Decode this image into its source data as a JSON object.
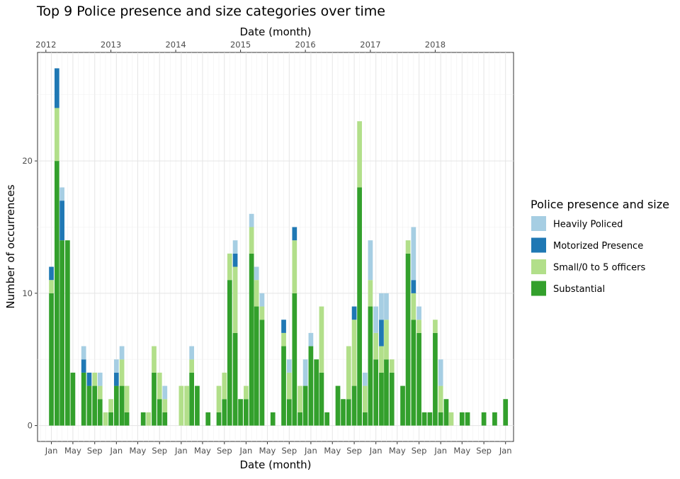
{
  "chart_data": {
    "type": "bar",
    "stacked": true,
    "title": "Top 9  Police presence and size categories over time",
    "xlabel": "Date (month)",
    "xlabel_top": "Date (month)",
    "ylabel": "Number of occurrences",
    "ylim": [
      -1.2,
      28.2
    ],
    "y_ticks": [
      0,
      10,
      20
    ],
    "x_range": [
      "2011-10-15",
      "2019-02-15"
    ],
    "bottom_ticks": [
      {
        "date": "2012-01-01",
        "label": "Jan"
      },
      {
        "date": "2012-05-01",
        "label": "May"
      },
      {
        "date": "2012-09-01",
        "label": "Sep"
      },
      {
        "date": "2013-01-01",
        "label": "Jan"
      },
      {
        "date": "2013-05-01",
        "label": "May"
      },
      {
        "date": "2013-09-01",
        "label": "Sep"
      },
      {
        "date": "2014-01-01",
        "label": "Jan"
      },
      {
        "date": "2014-05-01",
        "label": "May"
      },
      {
        "date": "2014-09-01",
        "label": "Sep"
      },
      {
        "date": "2015-01-01",
        "label": "Jan"
      },
      {
        "date": "2015-05-01",
        "label": "May"
      },
      {
        "date": "2015-09-01",
        "label": "Sep"
      },
      {
        "date": "2016-01-01",
        "label": "Jan"
      },
      {
        "date": "2016-05-01",
        "label": "May"
      },
      {
        "date": "2016-09-01",
        "label": "Sep"
      },
      {
        "date": "2017-01-01",
        "label": "Jan"
      },
      {
        "date": "2017-05-01",
        "label": "May"
      },
      {
        "date": "2017-09-01",
        "label": "Sep"
      },
      {
        "date": "2018-01-01",
        "label": "Jan"
      },
      {
        "date": "2018-05-01",
        "label": "May"
      },
      {
        "date": "2018-09-01",
        "label": "Sep"
      },
      {
        "date": "2019-01-01",
        "label": "Jan"
      }
    ],
    "top_ticks": [
      {
        "date": "2011-12-01",
        "label": "2012"
      },
      {
        "date": "2012-12-01",
        "label": "2013"
      },
      {
        "date": "2013-12-01",
        "label": "2014"
      },
      {
        "date": "2014-12-01",
        "label": "2015"
      },
      {
        "date": "2015-12-01",
        "label": "2016"
      },
      {
        "date": "2016-12-01",
        "label": "2017"
      },
      {
        "date": "2017-12-01",
        "label": "2018"
      }
    ],
    "grid": true,
    "legend": {
      "title": "Police presence and size",
      "position": "right",
      "entries": [
        {
          "name": "Heavily Policed",
          "color": "#a6cee3"
        },
        {
          "name": "Motorized Presence",
          "color": "#1f78b4"
        },
        {
          "name": "Small/0 to 5 officers",
          "color": "#b2df8a"
        },
        {
          "name": "Substantial",
          "color": "#33a02c"
        }
      ]
    },
    "stack_order": [
      "Substantial",
      "Small/0 to 5 officers",
      "Motorized Presence",
      "Heavily Policed"
    ],
    "colors": {
      "Heavily Policed": "#a6cee3",
      "Motorized Presence": "#1f78b4",
      "Small/0 to 5 officers": "#b2df8a",
      "Substantial": "#33a02c"
    },
    "bars": [
      {
        "month": "2012-01",
        "Substantial": 10,
        "Small/0 to 5 officers": 1,
        "Motorized Presence": 1,
        "Heavily Policed": 0
      },
      {
        "month": "2012-02",
        "Substantial": 20,
        "Small/0 to 5 officers": 4,
        "Motorized Presence": 3,
        "Heavily Policed": 0
      },
      {
        "month": "2012-03",
        "Substantial": 14,
        "Small/0 to 5 officers": 0,
        "Motorized Presence": 3,
        "Heavily Policed": 1
      },
      {
        "month": "2012-04",
        "Substantial": 14,
        "Small/0 to 5 officers": 0,
        "Motorized Presence": 0,
        "Heavily Policed": 0
      },
      {
        "month": "2012-05",
        "Substantial": 4,
        "Small/0 to 5 officers": 0,
        "Motorized Presence": 0,
        "Heavily Policed": 0
      },
      {
        "month": "2012-07",
        "Substantial": 4,
        "Small/0 to 5 officers": 0,
        "Motorized Presence": 1,
        "Heavily Policed": 1
      },
      {
        "month": "2012-08",
        "Substantial": 3,
        "Small/0 to 5 officers": 0,
        "Motorized Presence": 1,
        "Heavily Policed": 0
      },
      {
        "month": "2012-09",
        "Substantial": 3,
        "Small/0 to 5 officers": 1,
        "Motorized Presence": 0,
        "Heavily Policed": 0
      },
      {
        "month": "2012-10",
        "Substantial": 2,
        "Small/0 to 5 officers": 1,
        "Motorized Presence": 0,
        "Heavily Policed": 1
      },
      {
        "month": "2012-11",
        "Substantial": 0,
        "Small/0 to 5 officers": 1,
        "Motorized Presence": 0,
        "Heavily Policed": 0
      },
      {
        "month": "2012-12",
        "Substantial": 1,
        "Small/0 to 5 officers": 1,
        "Motorized Presence": 0,
        "Heavily Policed": 0
      },
      {
        "month": "2013-01",
        "Substantial": 3,
        "Small/0 to 5 officers": 0,
        "Motorized Presence": 1,
        "Heavily Policed": 1
      },
      {
        "month": "2013-02",
        "Substantial": 3,
        "Small/0 to 5 officers": 2,
        "Motorized Presence": 0,
        "Heavily Policed": 1
      },
      {
        "month": "2013-03",
        "Substantial": 1,
        "Small/0 to 5 officers": 2,
        "Motorized Presence": 0,
        "Heavily Policed": 0
      },
      {
        "month": "2013-06",
        "Substantial": 1,
        "Small/0 to 5 officers": 0,
        "Motorized Presence": 0,
        "Heavily Policed": 0
      },
      {
        "month": "2013-07",
        "Substantial": 0,
        "Small/0 to 5 officers": 1,
        "Motorized Presence": 0,
        "Heavily Policed": 0
      },
      {
        "month": "2013-08",
        "Substantial": 4,
        "Small/0 to 5 officers": 2,
        "Motorized Presence": 0,
        "Heavily Policed": 0
      },
      {
        "month": "2013-09",
        "Substantial": 2,
        "Small/0 to 5 officers": 2,
        "Motorized Presence": 0,
        "Heavily Policed": 0
      },
      {
        "month": "2013-10",
        "Substantial": 1,
        "Small/0 to 5 officers": 1,
        "Motorized Presence": 0,
        "Heavily Policed": 1
      },
      {
        "month": "2014-01",
        "Substantial": 0,
        "Small/0 to 5 officers": 3,
        "Motorized Presence": 0,
        "Heavily Policed": 0
      },
      {
        "month": "2014-02",
        "Substantial": 0,
        "Small/0 to 5 officers": 3,
        "Motorized Presence": 0,
        "Heavily Policed": 0
      },
      {
        "month": "2014-03",
        "Substantial": 4,
        "Small/0 to 5 officers": 1,
        "Motorized Presence": 0,
        "Heavily Policed": 1
      },
      {
        "month": "2014-04",
        "Substantial": 3,
        "Small/0 to 5 officers": 0,
        "Motorized Presence": 0,
        "Heavily Policed": 0
      },
      {
        "month": "2014-06",
        "Substantial": 1,
        "Small/0 to 5 officers": 0,
        "Motorized Presence": 0,
        "Heavily Policed": 0
      },
      {
        "month": "2014-08",
        "Substantial": 1,
        "Small/0 to 5 officers": 2,
        "Motorized Presence": 0,
        "Heavily Policed": 0
      },
      {
        "month": "2014-09",
        "Substantial": 2,
        "Small/0 to 5 officers": 2,
        "Motorized Presence": 0,
        "Heavily Policed": 0
      },
      {
        "month": "2014-10",
        "Substantial": 11,
        "Small/0 to 5 officers": 2,
        "Motorized Presence": 0,
        "Heavily Policed": 0
      },
      {
        "month": "2014-11",
        "Substantial": 7,
        "Small/0 to 5 officers": 5,
        "Motorized Presence": 1,
        "Heavily Policed": 1
      },
      {
        "month": "2014-12",
        "Substantial": 2,
        "Small/0 to 5 officers": 0,
        "Motorized Presence": 0,
        "Heavily Policed": 0
      },
      {
        "month": "2015-01",
        "Substantial": 2,
        "Small/0 to 5 officers": 1,
        "Motorized Presence": 0,
        "Heavily Policed": 0
      },
      {
        "month": "2015-02",
        "Substantial": 13,
        "Small/0 to 5 officers": 2,
        "Motorized Presence": 0,
        "Heavily Policed": 1
      },
      {
        "month": "2015-03",
        "Substantial": 9,
        "Small/0 to 5 officers": 2,
        "Motorized Presence": 0,
        "Heavily Policed": 1
      },
      {
        "month": "2015-04",
        "Substantial": 8,
        "Small/0 to 5 officers": 1,
        "Motorized Presence": 0,
        "Heavily Policed": 1
      },
      {
        "month": "2015-06",
        "Substantial": 1,
        "Small/0 to 5 officers": 0,
        "Motorized Presence": 0,
        "Heavily Policed": 0
      },
      {
        "month": "2015-08",
        "Substantial": 6,
        "Small/0 to 5 officers": 1,
        "Motorized Presence": 1,
        "Heavily Policed": 0
      },
      {
        "month": "2015-09",
        "Substantial": 2,
        "Small/0 to 5 officers": 2,
        "Motorized Presence": 0,
        "Heavily Policed": 1
      },
      {
        "month": "2015-10",
        "Substantial": 10,
        "Small/0 to 5 officers": 4,
        "Motorized Presence": 1,
        "Heavily Policed": 0
      },
      {
        "month": "2015-11",
        "Substantial": 1,
        "Small/0 to 5 officers": 2,
        "Motorized Presence": 0,
        "Heavily Policed": 0
      },
      {
        "month": "2015-12",
        "Substantial": 3,
        "Small/0 to 5 officers": 0,
        "Motorized Presence": 0,
        "Heavily Policed": 2
      },
      {
        "month": "2016-01",
        "Substantial": 6,
        "Small/0 to 5 officers": 0,
        "Motorized Presence": 0,
        "Heavily Policed": 1
      },
      {
        "month": "2016-02",
        "Substantial": 5,
        "Small/0 to 5 officers": 0,
        "Motorized Presence": 0,
        "Heavily Policed": 0
      },
      {
        "month": "2016-03",
        "Substantial": 4,
        "Small/0 to 5 officers": 5,
        "Motorized Presence": 0,
        "Heavily Policed": 0
      },
      {
        "month": "2016-04",
        "Substantial": 1,
        "Small/0 to 5 officers": 0,
        "Motorized Presence": 0,
        "Heavily Policed": 0
      },
      {
        "month": "2016-06",
        "Substantial": 3,
        "Small/0 to 5 officers": 0,
        "Motorized Presence": 0,
        "Heavily Policed": 0
      },
      {
        "month": "2016-07",
        "Substantial": 2,
        "Small/0 to 5 officers": 0,
        "Motorized Presence": 0,
        "Heavily Policed": 0
      },
      {
        "month": "2016-08",
        "Substantial": 2,
        "Small/0 to 5 officers": 4,
        "Motorized Presence": 0,
        "Heavily Policed": 0
      },
      {
        "month": "2016-09",
        "Substantial": 3,
        "Small/0 to 5 officers": 5,
        "Motorized Presence": 1,
        "Heavily Policed": 0
      },
      {
        "month": "2016-10",
        "Substantial": 18,
        "Small/0 to 5 officers": 5,
        "Motorized Presence": 0,
        "Heavily Policed": 0
      },
      {
        "month": "2016-11",
        "Substantial": 1,
        "Small/0 to 5 officers": 2,
        "Motorized Presence": 0,
        "Heavily Policed": 1
      },
      {
        "month": "2016-12",
        "Substantial": 9,
        "Small/0 to 5 officers": 2,
        "Motorized Presence": 0,
        "Heavily Policed": 3
      },
      {
        "month": "2017-01",
        "Substantial": 5,
        "Small/0 to 5 officers": 2,
        "Motorized Presence": 0,
        "Heavily Policed": 2
      },
      {
        "month": "2017-02",
        "Substantial": 4,
        "Small/0 to 5 officers": 2,
        "Motorized Presence": 2,
        "Heavily Policed": 2
      },
      {
        "month": "2017-03",
        "Substantial": 5,
        "Small/0 to 5 officers": 3,
        "Motorized Presence": 0,
        "Heavily Policed": 2
      },
      {
        "month": "2017-04",
        "Substantial": 4,
        "Small/0 to 5 officers": 1,
        "Motorized Presence": 0,
        "Heavily Policed": 0
      },
      {
        "month": "2017-06",
        "Substantial": 3,
        "Small/0 to 5 officers": 0,
        "Motorized Presence": 0,
        "Heavily Policed": 0
      },
      {
        "month": "2017-07",
        "Substantial": 13,
        "Small/0 to 5 officers": 1,
        "Motorized Presence": 0,
        "Heavily Policed": 0
      },
      {
        "month": "2017-08",
        "Substantial": 8,
        "Small/0 to 5 officers": 2,
        "Motorized Presence": 1,
        "Heavily Policed": 4
      },
      {
        "month": "2017-09",
        "Substantial": 7,
        "Small/0 to 5 officers": 1,
        "Motorized Presence": 0,
        "Heavily Policed": 1
      },
      {
        "month": "2017-10",
        "Substantial": 1,
        "Small/0 to 5 officers": 0,
        "Motorized Presence": 0,
        "Heavily Policed": 0
      },
      {
        "month": "2017-11",
        "Substantial": 1,
        "Small/0 to 5 officers": 0,
        "Motorized Presence": 0,
        "Heavily Policed": 0
      },
      {
        "month": "2017-12",
        "Substantial": 7,
        "Small/0 to 5 officers": 1,
        "Motorized Presence": 0,
        "Heavily Policed": 0
      },
      {
        "month": "2018-01",
        "Substantial": 1,
        "Small/0 to 5 officers": 2,
        "Motorized Presence": 0,
        "Heavily Policed": 2
      },
      {
        "month": "2018-02",
        "Substantial": 2,
        "Small/0 to 5 officers": 0,
        "Motorized Presence": 0,
        "Heavily Policed": 0
      },
      {
        "month": "2018-03",
        "Substantial": 0,
        "Small/0 to 5 officers": 1,
        "Motorized Presence": 0,
        "Heavily Policed": 0
      },
      {
        "month": "2018-05",
        "Substantial": 1,
        "Small/0 to 5 officers": 0,
        "Motorized Presence": 0,
        "Heavily Policed": 0
      },
      {
        "month": "2018-06",
        "Substantial": 1,
        "Small/0 to 5 officers": 0,
        "Motorized Presence": 0,
        "Heavily Policed": 0
      },
      {
        "month": "2018-07",
        "Substantial": 0,
        "Small/0 to 5 officers": 0,
        "Motorized Presence": 0,
        "Heavily Policed": 0
      },
      {
        "month": "2018-09",
        "Substantial": 1,
        "Small/0 to 5 officers": 0,
        "Motorized Presence": 0,
        "Heavily Policed": 0
      },
      {
        "month": "2018-11",
        "Substantial": 1,
        "Small/0 to 5 officers": 0,
        "Motorized Presence": 0,
        "Heavily Policed": 0
      },
      {
        "month": "2019-01",
        "Substantial": 2,
        "Small/0 to 5 officers": 0,
        "Motorized Presence": 0,
        "Heavily Policed": 0
      }
    ]
  }
}
